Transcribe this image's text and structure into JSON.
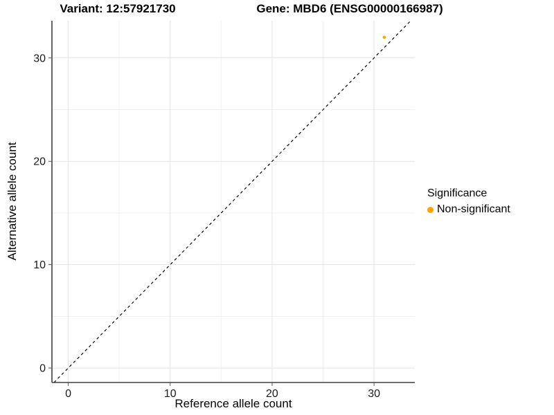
{
  "titles": {
    "variant": "Variant: 12:57921730",
    "gene": "Gene: MBD6 (ENSG00000166987)"
  },
  "chart_data": {
    "type": "scatter",
    "xlabel": "Reference allele count",
    "ylabel": "Alternative allele count",
    "xlim": [
      -1.6,
      34.0
    ],
    "ylim": [
      -1.4,
      33.6
    ],
    "xticks": [
      0,
      10,
      20,
      30
    ],
    "yticks": [
      0,
      10,
      20,
      30
    ],
    "xminor": [
      5,
      15,
      25
    ],
    "yminor": [
      5,
      15,
      25
    ],
    "grid": "major+minor, light gray on white",
    "identity_line": {
      "equation": "y = x",
      "style": "dashed",
      "color": "#000000"
    },
    "series": [
      {
        "name": "Non-significant",
        "color": "#FFA500",
        "points": [
          [
            31,
            32
          ]
        ]
      }
    ],
    "legend": {
      "position": "right",
      "title": "Significance",
      "entries": [
        {
          "label": "Non-significant",
          "color": "#FFA500",
          "marker": "circle"
        }
      ]
    }
  }
}
